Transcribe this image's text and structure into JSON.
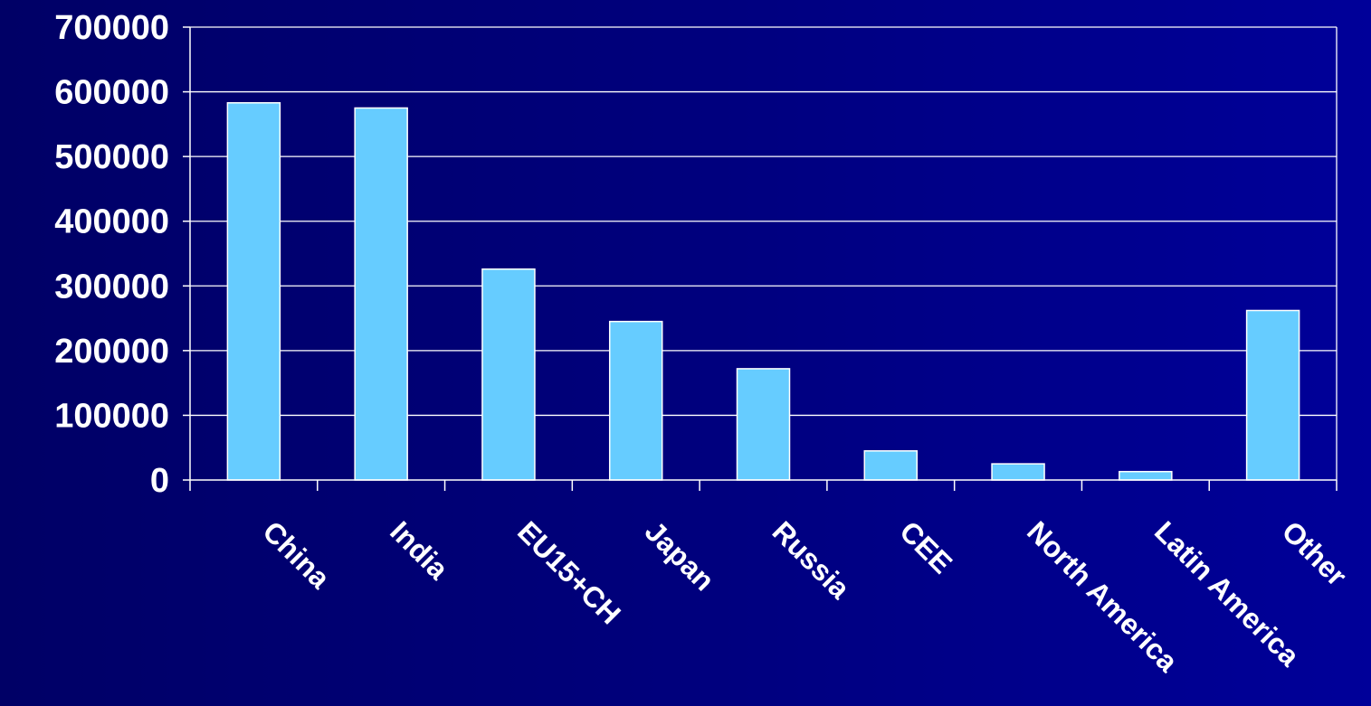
{
  "chart_data": {
    "type": "bar",
    "title": "",
    "xlabel": "",
    "ylabel": "",
    "categories": [
      "China",
      "India",
      "EU15+CH",
      "Japan",
      "Russia",
      "CEE",
      "North America",
      "Latin America",
      "Other"
    ],
    "values": [
      583000,
      575000,
      326000,
      245000,
      172000,
      45000,
      25000,
      13000,
      262000
    ],
    "ylim": [
      0,
      700000
    ],
    "yticks": [
      0,
      100000,
      200000,
      300000,
      400000,
      500000,
      600000,
      700000
    ],
    "grid": true,
    "legend": "none",
    "colors": {
      "bar": "#66ccff",
      "bar_border": "#ffffff",
      "grid": "#ffffff",
      "axis": "#ffffff",
      "text": "#ffffff",
      "background": "#000080"
    }
  }
}
